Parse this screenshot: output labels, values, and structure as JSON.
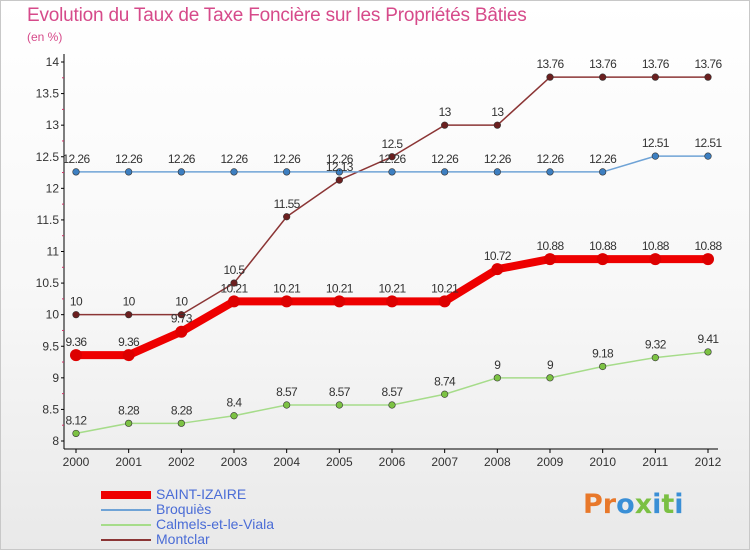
{
  "header": {
    "title": "Evolution du Taux de Taxe Foncière sur les Propriétés Bâties",
    "subtitle": "(en %)"
  },
  "logo": {
    "text": "Proxiti",
    "colors": [
      "#e8782a",
      "#e8782a",
      "#3a8fd6",
      "#7bc043",
      "#3a8fd6",
      "#7bc043",
      "#3a8fd6"
    ]
  },
  "chart_data": {
    "type": "line",
    "x": [
      "2000",
      "2001",
      "2002",
      "2003",
      "2004",
      "2005",
      "2006",
      "2007",
      "2008",
      "2009",
      "2010",
      "2011",
      "2012"
    ],
    "ylim": [
      8,
      14
    ],
    "yticks": [
      "8",
      "8.5",
      "9",
      "9.5",
      "10",
      "10.5",
      "11",
      "11.5",
      "12",
      "12.5",
      "13",
      "13.5",
      "14"
    ],
    "grid": false,
    "legend_position": "bottom-left",
    "series": [
      {
        "name": "SAINT-IZAIRE",
        "color": "#ee0000",
        "point_color": "#dd0000",
        "width": 8,
        "values": [
          9.36,
          9.36,
          9.73,
          10.21,
          10.21,
          10.21,
          10.21,
          10.21,
          10.72,
          10.88,
          10.88,
          10.88,
          10.88
        ],
        "labels": [
          "9.36",
          "9.36",
          "9.73",
          "10.21",
          "10.21",
          "10.21",
          "10.21",
          "10.21",
          "10.72",
          "10.88",
          "10.88",
          "10.88",
          "10.88"
        ]
      },
      {
        "name": "Broquiès",
        "color": "#6fa3d6",
        "point_color": "#3d7fc1",
        "width": 1.5,
        "values": [
          12.26,
          12.26,
          12.26,
          12.26,
          12.26,
          12.26,
          12.26,
          12.26,
          12.26,
          12.26,
          12.26,
          12.51,
          12.51
        ],
        "labels": [
          "12.26",
          "12.26",
          "12.26",
          "12.26",
          "12.26",
          "12.26",
          "12.26",
          "12.26",
          "12.26",
          "12.26",
          "12.26",
          "12.51",
          "12.51"
        ]
      },
      {
        "name": "Calmels-et-le-Viala",
        "color": "#a6dc8a",
        "point_color": "#7cc243",
        "width": 1.5,
        "values": [
          8.12,
          8.28,
          8.28,
          8.4,
          8.57,
          8.57,
          8.57,
          8.74,
          9,
          9,
          9.18,
          9.32,
          9.41
        ],
        "labels": [
          "8.12",
          "8.28",
          "8.28",
          "8.4",
          "8.57",
          "8.57",
          "8.57",
          "8.74",
          "9",
          "9",
          "9.18",
          "9.32",
          "9.41"
        ]
      },
      {
        "name": "Montclar",
        "color": "#8b3535",
        "point_color": "#6b1f1f",
        "width": 1.5,
        "values": [
          10,
          10,
          10,
          10.5,
          11.55,
          12.13,
          12.5,
          13,
          13,
          13.76,
          13.76,
          13.76,
          13.76
        ],
        "labels": [
          "10",
          "10",
          "10",
          "10.5",
          "11.55",
          "12.13",
          "12.5",
          "13",
          "13",
          "13.76",
          "13.76",
          "13.76",
          "13.76"
        ]
      }
    ]
  }
}
